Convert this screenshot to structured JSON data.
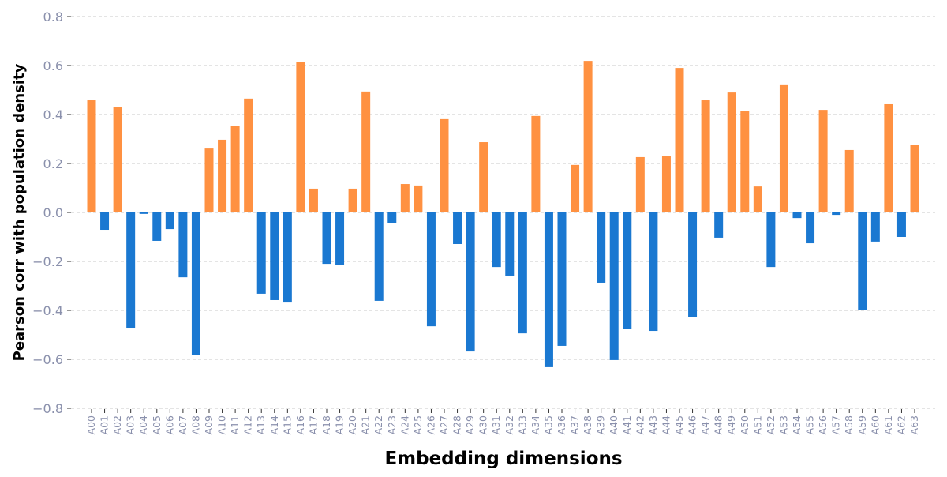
{
  "chart_data": {
    "type": "bar",
    "title": "",
    "xlabel": "Embedding dimensions",
    "ylabel": "Pearson corr with population density",
    "ylim": [
      -0.8,
      0.8
    ],
    "yticks": [
      "0.8",
      "0.6",
      "0.4",
      "0.2",
      "0.0",
      "−0.2",
      "−0.4",
      "−0.6",
      "−0.8"
    ],
    "ytick_values": [
      0.8,
      0.6,
      0.4,
      0.2,
      0.0,
      -0.2,
      -0.4,
      -0.6,
      -0.8
    ],
    "grid": true,
    "colors": {
      "positive": "#ff9141",
      "negative": "#1a78d1",
      "grid": "#c8c8c8",
      "tick_label": "#8a90ac"
    },
    "categories": [
      "A00",
      "A01",
      "A02",
      "A03",
      "A04",
      "A05",
      "A06",
      "A07",
      "A08",
      "A09",
      "A10",
      "A11",
      "A12",
      "A13",
      "A14",
      "A15",
      "A16",
      "A17",
      "A18",
      "A19",
      "A20",
      "A21",
      "A22",
      "A23",
      "A24",
      "A25",
      "A26",
      "A27",
      "A28",
      "A29",
      "A30",
      "A31",
      "A32",
      "A33",
      "A34",
      "A35",
      "A36",
      "A37",
      "A38",
      "A39",
      "A40",
      "A41",
      "A42",
      "A43",
      "A44",
      "A45",
      "A46",
      "A47",
      "A48",
      "A49",
      "A50",
      "A51",
      "A52",
      "A53",
      "A54",
      "A55",
      "A56",
      "A57",
      "A58",
      "A59",
      "A60",
      "A61",
      "A62",
      "A63"
    ],
    "values": [
      0.458,
      -0.071,
      0.429,
      -0.471,
      -0.006,
      -0.116,
      -0.068,
      -0.265,
      -0.581,
      0.261,
      0.297,
      0.352,
      0.465,
      -0.332,
      -0.358,
      -0.368,
      0.616,
      0.097,
      -0.21,
      -0.213,
      0.097,
      0.494,
      -0.361,
      -0.045,
      0.116,
      0.11,
      -0.465,
      0.381,
      -0.129,
      -0.568,
      0.287,
      -0.223,
      -0.258,
      -0.494,
      0.394,
      -0.632,
      -0.545,
      0.194,
      0.619,
      -0.287,
      -0.603,
      -0.477,
      0.226,
      -0.484,
      0.229,
      0.59,
      -0.426,
      0.458,
      -0.103,
      0.49,
      0.413,
      0.106,
      -0.223,
      0.523,
      -0.023,
      -0.126,
      0.419,
      -0.01,
      0.255,
      -0.4,
      -0.119,
      0.442,
      -0.1,
      0.277
    ]
  }
}
